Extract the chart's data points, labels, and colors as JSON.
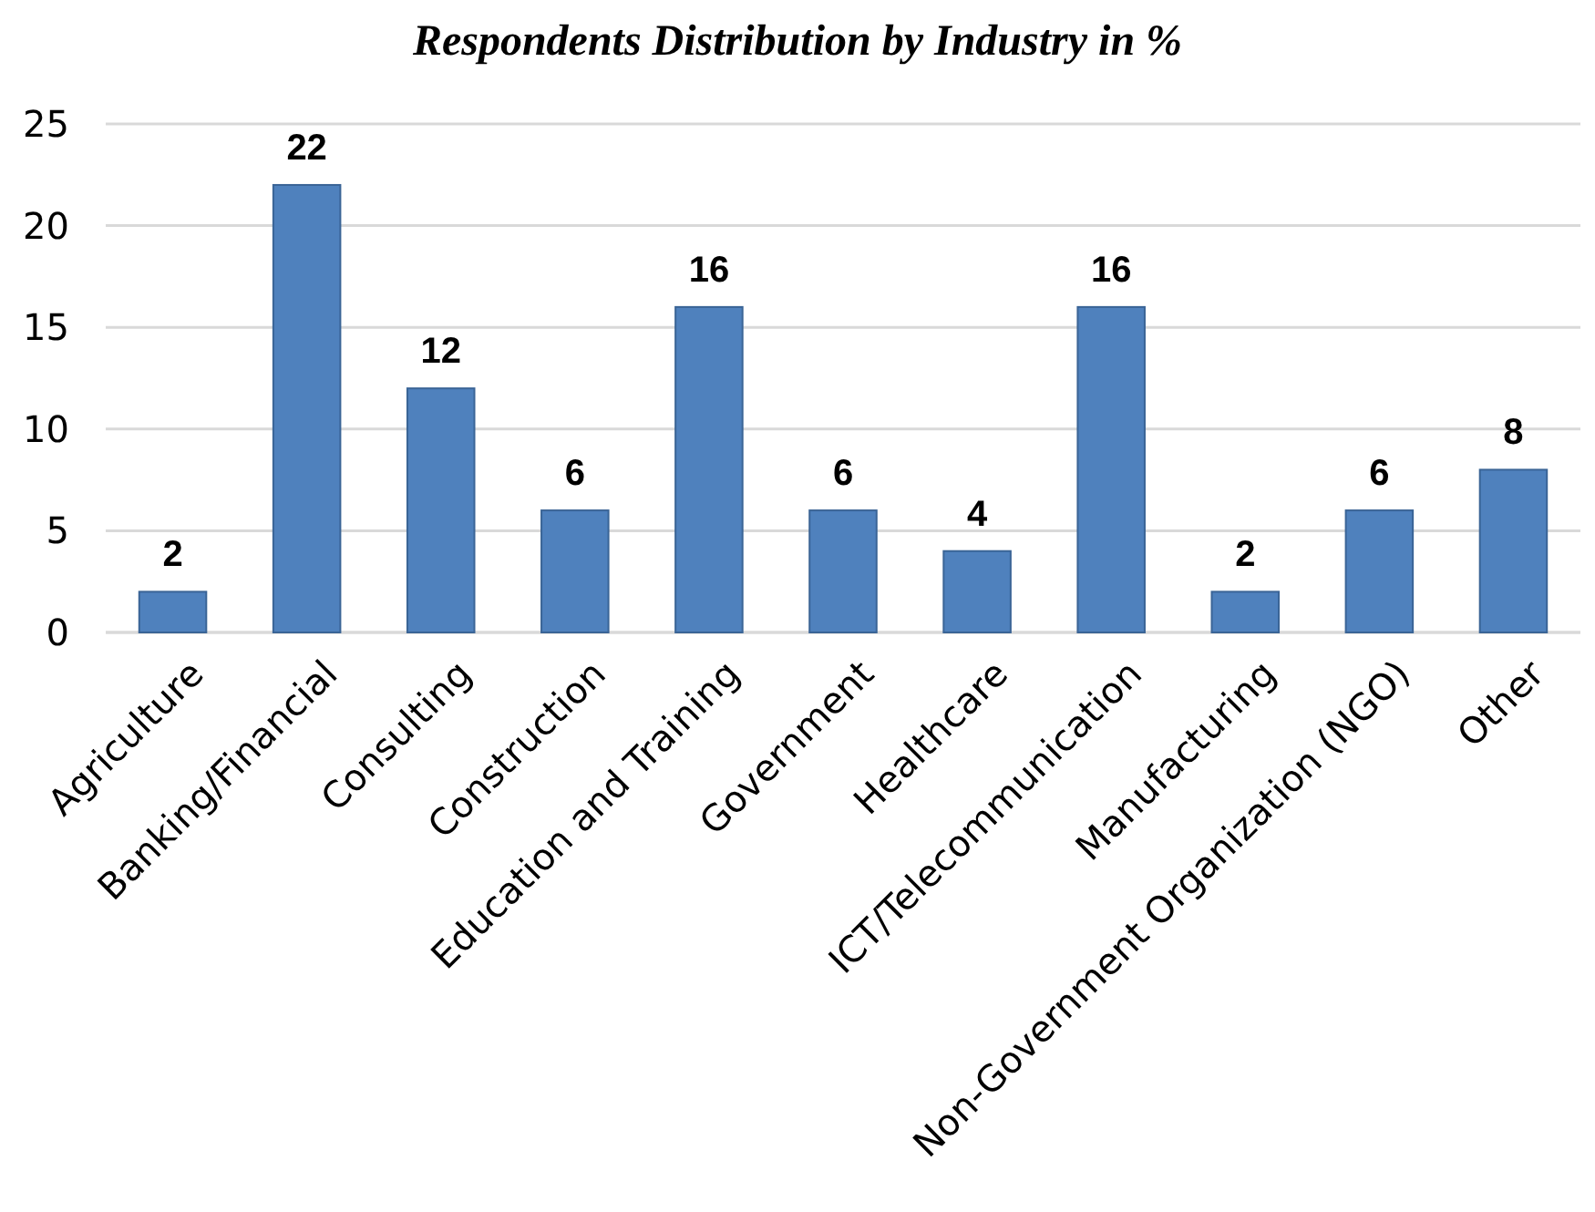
{
  "chart_data": {
    "type": "bar",
    "title": "Respondents Distribution by Industry in %",
    "categories": [
      "Agriculture",
      "Banking/Financial",
      "Consulting",
      "Construction",
      "Education and Training",
      "Government",
      "Healthcare",
      "ICT/Telecommunication",
      "Manufacturing",
      "Non-Government Organization (NGO)",
      "Other"
    ],
    "values": [
      2,
      22,
      12,
      6,
      16,
      6,
      4,
      16,
      2,
      6,
      8
    ],
    "color": "#4f81bd",
    "ylim": [
      0,
      25
    ],
    "yticks": [
      0,
      5,
      10,
      15,
      20,
      25
    ],
    "grid": "y",
    "data_labels": true
  }
}
